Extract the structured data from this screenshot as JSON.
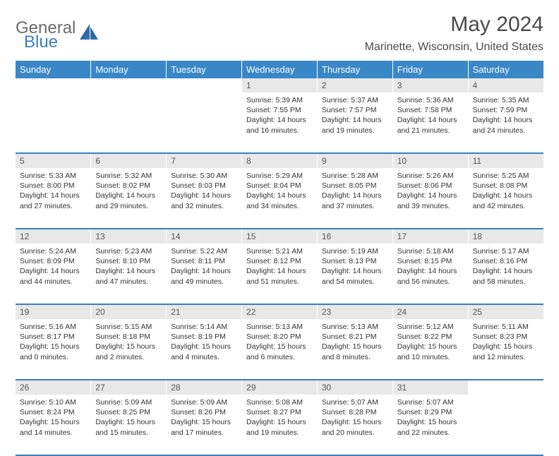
{
  "brand": {
    "word1": "General",
    "word2": "Blue"
  },
  "title": "May 2024",
  "location": "Marinette, Wisconsin, United States",
  "colors": {
    "header_bg": "#3a87c8",
    "header_fg": "#ffffff",
    "daynum_bg": "#e8e8e8",
    "row_divider": "#3a7fbf",
    "brand_gray": "#6b6b6b",
    "brand_blue": "#3a7fbf"
  },
  "days_of_week": [
    "Sunday",
    "Monday",
    "Tuesday",
    "Wednesday",
    "Thursday",
    "Friday",
    "Saturday"
  ],
  "weeks": [
    [
      {
        "n": "",
        "empty": true
      },
      {
        "n": "",
        "empty": true
      },
      {
        "n": "",
        "empty": true
      },
      {
        "n": "1",
        "sunrise": "Sunrise: 5:39 AM",
        "sunset": "Sunset: 7:55 PM",
        "dl1": "Daylight: 14 hours",
        "dl2": "and 16 minutes."
      },
      {
        "n": "2",
        "sunrise": "Sunrise: 5:37 AM",
        "sunset": "Sunset: 7:57 PM",
        "dl1": "Daylight: 14 hours",
        "dl2": "and 19 minutes."
      },
      {
        "n": "3",
        "sunrise": "Sunrise: 5:36 AM",
        "sunset": "Sunset: 7:58 PM",
        "dl1": "Daylight: 14 hours",
        "dl2": "and 21 minutes."
      },
      {
        "n": "4",
        "sunrise": "Sunrise: 5:35 AM",
        "sunset": "Sunset: 7:59 PM",
        "dl1": "Daylight: 14 hours",
        "dl2": "and 24 minutes."
      }
    ],
    [
      {
        "n": "5",
        "sunrise": "Sunrise: 5:33 AM",
        "sunset": "Sunset: 8:00 PM",
        "dl1": "Daylight: 14 hours",
        "dl2": "and 27 minutes."
      },
      {
        "n": "6",
        "sunrise": "Sunrise: 5:32 AM",
        "sunset": "Sunset: 8:02 PM",
        "dl1": "Daylight: 14 hours",
        "dl2": "and 29 minutes."
      },
      {
        "n": "7",
        "sunrise": "Sunrise: 5:30 AM",
        "sunset": "Sunset: 8:03 PM",
        "dl1": "Daylight: 14 hours",
        "dl2": "and 32 minutes."
      },
      {
        "n": "8",
        "sunrise": "Sunrise: 5:29 AM",
        "sunset": "Sunset: 8:04 PM",
        "dl1": "Daylight: 14 hours",
        "dl2": "and 34 minutes."
      },
      {
        "n": "9",
        "sunrise": "Sunrise: 5:28 AM",
        "sunset": "Sunset: 8:05 PM",
        "dl1": "Daylight: 14 hours",
        "dl2": "and 37 minutes."
      },
      {
        "n": "10",
        "sunrise": "Sunrise: 5:26 AM",
        "sunset": "Sunset: 8:06 PM",
        "dl1": "Daylight: 14 hours",
        "dl2": "and 39 minutes."
      },
      {
        "n": "11",
        "sunrise": "Sunrise: 5:25 AM",
        "sunset": "Sunset: 8:08 PM",
        "dl1": "Daylight: 14 hours",
        "dl2": "and 42 minutes."
      }
    ],
    [
      {
        "n": "12",
        "sunrise": "Sunrise: 5:24 AM",
        "sunset": "Sunset: 8:09 PM",
        "dl1": "Daylight: 14 hours",
        "dl2": "and 44 minutes."
      },
      {
        "n": "13",
        "sunrise": "Sunrise: 5:23 AM",
        "sunset": "Sunset: 8:10 PM",
        "dl1": "Daylight: 14 hours",
        "dl2": "and 47 minutes."
      },
      {
        "n": "14",
        "sunrise": "Sunrise: 5:22 AM",
        "sunset": "Sunset: 8:11 PM",
        "dl1": "Daylight: 14 hours",
        "dl2": "and 49 minutes."
      },
      {
        "n": "15",
        "sunrise": "Sunrise: 5:21 AM",
        "sunset": "Sunset: 8:12 PM",
        "dl1": "Daylight: 14 hours",
        "dl2": "and 51 minutes."
      },
      {
        "n": "16",
        "sunrise": "Sunrise: 5:19 AM",
        "sunset": "Sunset: 8:13 PM",
        "dl1": "Daylight: 14 hours",
        "dl2": "and 54 minutes."
      },
      {
        "n": "17",
        "sunrise": "Sunrise: 5:18 AM",
        "sunset": "Sunset: 8:15 PM",
        "dl1": "Daylight: 14 hours",
        "dl2": "and 56 minutes."
      },
      {
        "n": "18",
        "sunrise": "Sunrise: 5:17 AM",
        "sunset": "Sunset: 8:16 PM",
        "dl1": "Daylight: 14 hours",
        "dl2": "and 58 minutes."
      }
    ],
    [
      {
        "n": "19",
        "sunrise": "Sunrise: 5:16 AM",
        "sunset": "Sunset: 8:17 PM",
        "dl1": "Daylight: 15 hours",
        "dl2": "and 0 minutes."
      },
      {
        "n": "20",
        "sunrise": "Sunrise: 5:15 AM",
        "sunset": "Sunset: 8:18 PM",
        "dl1": "Daylight: 15 hours",
        "dl2": "and 2 minutes."
      },
      {
        "n": "21",
        "sunrise": "Sunrise: 5:14 AM",
        "sunset": "Sunset: 8:19 PM",
        "dl1": "Daylight: 15 hours",
        "dl2": "and 4 minutes."
      },
      {
        "n": "22",
        "sunrise": "Sunrise: 5:13 AM",
        "sunset": "Sunset: 8:20 PM",
        "dl1": "Daylight: 15 hours",
        "dl2": "and 6 minutes."
      },
      {
        "n": "23",
        "sunrise": "Sunrise: 5:13 AM",
        "sunset": "Sunset: 8:21 PM",
        "dl1": "Daylight: 15 hours",
        "dl2": "and 8 minutes."
      },
      {
        "n": "24",
        "sunrise": "Sunrise: 5:12 AM",
        "sunset": "Sunset: 8:22 PM",
        "dl1": "Daylight: 15 hours",
        "dl2": "and 10 minutes."
      },
      {
        "n": "25",
        "sunrise": "Sunrise: 5:11 AM",
        "sunset": "Sunset: 8:23 PM",
        "dl1": "Daylight: 15 hours",
        "dl2": "and 12 minutes."
      }
    ],
    [
      {
        "n": "26",
        "sunrise": "Sunrise: 5:10 AM",
        "sunset": "Sunset: 8:24 PM",
        "dl1": "Daylight: 15 hours",
        "dl2": "and 14 minutes."
      },
      {
        "n": "27",
        "sunrise": "Sunrise: 5:09 AM",
        "sunset": "Sunset: 8:25 PM",
        "dl1": "Daylight: 15 hours",
        "dl2": "and 15 minutes."
      },
      {
        "n": "28",
        "sunrise": "Sunrise: 5:09 AM",
        "sunset": "Sunset: 8:26 PM",
        "dl1": "Daylight: 15 hours",
        "dl2": "and 17 minutes."
      },
      {
        "n": "29",
        "sunrise": "Sunrise: 5:08 AM",
        "sunset": "Sunset: 8:27 PM",
        "dl1": "Daylight: 15 hours",
        "dl2": "and 19 minutes."
      },
      {
        "n": "30",
        "sunrise": "Sunrise: 5:07 AM",
        "sunset": "Sunset: 8:28 PM",
        "dl1": "Daylight: 15 hours",
        "dl2": "and 20 minutes."
      },
      {
        "n": "31",
        "sunrise": "Sunrise: 5:07 AM",
        "sunset": "Sunset: 8:29 PM",
        "dl1": "Daylight: 15 hours",
        "dl2": "and 22 minutes."
      },
      {
        "n": "",
        "empty": true
      }
    ]
  ]
}
